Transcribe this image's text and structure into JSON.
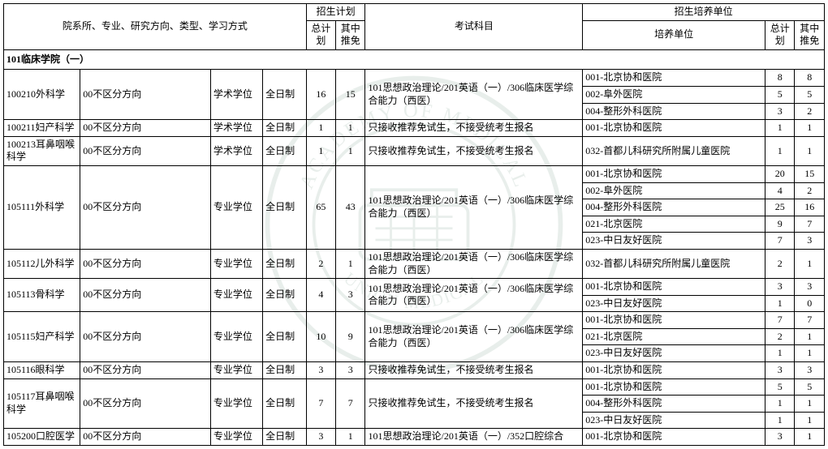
{
  "headers": {
    "dept": "院系所、专业、研究方向、类型、学习方式",
    "plan_group": "招生计划",
    "plan_total": "总计划",
    "plan_exempt": "其中推免",
    "exam": "考试科目",
    "unit_group": "招生培养单位",
    "unit": "培养单位",
    "unit_total": "总计划",
    "unit_exempt": "其中推免"
  },
  "section": "101临床学院（一）",
  "exam_texts": {
    "e306": "101思想政治理论/201英语（一）/306临床医学综合能力（西医）",
    "rec_only": "只接收推荐免试生，不接受统考生报名",
    "e352": "101思想政治理论/201英语（一）/352口腔综合"
  },
  "rows": [
    {
      "major": "100210外科学",
      "dir": "00不区分方向",
      "type": "学术学位",
      "mode": "全日制",
      "plan": [
        16,
        15
      ],
      "exam_key": "e306",
      "units": [
        {
          "name": "001-北京协和医院",
          "p": [
            8,
            8
          ]
        },
        {
          "name": "002-阜外医院",
          "p": [
            5,
            5
          ]
        },
        {
          "name": "004-整形外科医院",
          "p": [
            3,
            2
          ]
        }
      ]
    },
    {
      "major": "100211妇产科学",
      "dir": "00不区分方向",
      "type": "学术学位",
      "mode": "全日制",
      "plan": [
        1,
        1
      ],
      "exam_key": "rec_only",
      "units": [
        {
          "name": "001-北京协和医院",
          "p": [
            1,
            1
          ]
        }
      ]
    },
    {
      "major": "100213耳鼻咽喉科学",
      "dir": "00不区分方向",
      "type": "学术学位",
      "mode": "全日制",
      "plan": [
        1,
        1
      ],
      "exam_key": "rec_only",
      "units": [
        {
          "name": "032-首都儿科研究所附属儿童医院",
          "p": [
            1,
            1
          ]
        }
      ]
    },
    {
      "major": "105111外科学",
      "dir": "00不区分方向",
      "type": "专业学位",
      "mode": "全日制",
      "plan": [
        65,
        43
      ],
      "exam_key": "e306",
      "units": [
        {
          "name": "001-北京协和医院",
          "p": [
            20,
            15
          ]
        },
        {
          "name": "002-阜外医院",
          "p": [
            4,
            2
          ]
        },
        {
          "name": "004-整形外科医院",
          "p": [
            25,
            16
          ]
        },
        {
          "name": "021-北京医院",
          "p": [
            9,
            7
          ]
        },
        {
          "name": "023-中日友好医院",
          "p": [
            7,
            3
          ]
        }
      ]
    },
    {
      "major": "105112儿外科学",
      "dir": "00不区分方向",
      "type": "专业学位",
      "mode": "全日制",
      "plan": [
        2,
        1
      ],
      "exam_key": "e306",
      "units": [
        {
          "name": "032-首都儿科研究所附属儿童医院",
          "p": [
            2,
            1
          ]
        }
      ]
    },
    {
      "major": "105113骨科学",
      "dir": "00不区分方向",
      "type": "专业学位",
      "mode": "全日制",
      "plan": [
        4,
        3
      ],
      "exam_key": "e306",
      "units": [
        {
          "name": "001-北京协和医院",
          "p": [
            3,
            3
          ]
        },
        {
          "name": "023-中日友好医院",
          "p": [
            1,
            0
          ]
        }
      ]
    },
    {
      "major": "105115妇产科学",
      "dir": "00不区分方向",
      "type": "专业学位",
      "mode": "全日制",
      "plan": [
        10,
        9
      ],
      "exam_key": "e306",
      "units": [
        {
          "name": "001-北京协和医院",
          "p": [
            7,
            7
          ]
        },
        {
          "name": "021-北京医院",
          "p": [
            2,
            1
          ]
        },
        {
          "name": "023-中日友好医院",
          "p": [
            1,
            1
          ]
        }
      ]
    },
    {
      "major": "105116眼科学",
      "dir": "00不区分方向",
      "type": "专业学位",
      "mode": "全日制",
      "plan": [
        3,
        3
      ],
      "exam_key": "rec_only",
      "units": [
        {
          "name": "001-北京协和医院",
          "p": [
            3,
            3
          ]
        }
      ]
    },
    {
      "major": "105117耳鼻咽喉科学",
      "dir": "00不区分方向",
      "type": "专业学位",
      "mode": "全日制",
      "plan": [
        7,
        7
      ],
      "exam_key": "rec_only",
      "units": [
        {
          "name": "001-北京协和医院",
          "p": [
            5,
            5
          ]
        },
        {
          "name": "004-整形外科医院",
          "p": [
            1,
            1
          ]
        },
        {
          "name": "023-中日友好医院",
          "p": [
            1,
            1
          ]
        }
      ]
    },
    {
      "major": "105200口腔医学",
      "dir": "00不区分方向",
      "type": "专业学位",
      "mode": "全日制",
      "plan": [
        3,
        1
      ],
      "exam_key": "e352",
      "units": [
        {
          "name": "001-北京协和医院",
          "p": [
            3,
            1
          ]
        }
      ]
    }
  ]
}
